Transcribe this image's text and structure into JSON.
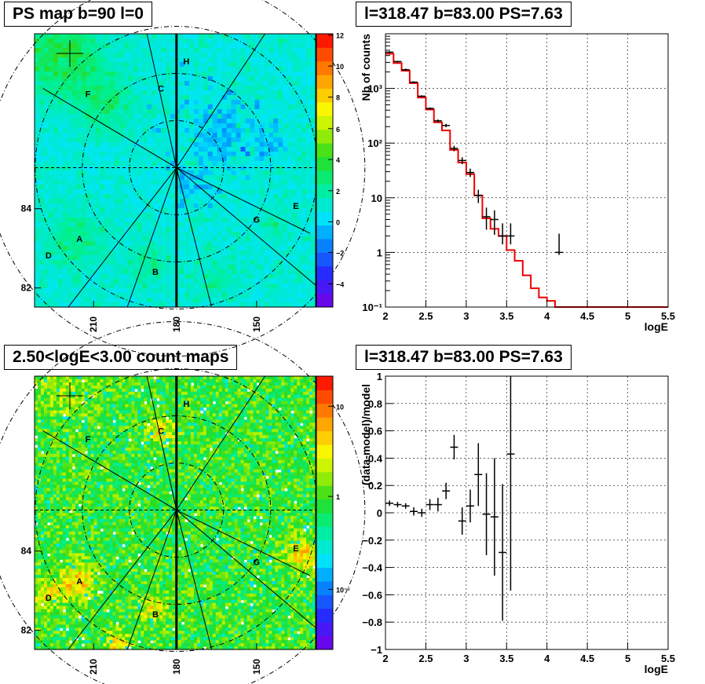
{
  "panels": {
    "top_left_title": "PS map b=90 l=0",
    "top_right_title": "l=318.47 b=83.00 PS=7.63",
    "bottom_left_title": "2.50<logE<3.00 count maps",
    "bottom_right_title": "l=318.47 b=83.00 PS=7.63"
  },
  "maps": {
    "x_ticks": [
      "210",
      "180",
      "150"
    ],
    "y_ticks": [
      "84",
      "82"
    ],
    "sector_labels": [
      "H",
      "C",
      "F",
      "E",
      "G",
      "A",
      "D",
      "B"
    ],
    "ps_colorbar_ticks": [
      "12",
      "10",
      "8",
      "6",
      "4",
      "2",
      "0",
      "−2",
      "−4"
    ],
    "count_colorbar_ticks": [
      "10",
      "1",
      "10⁻¹"
    ]
  },
  "chart_data": [
    {
      "type": "line",
      "title": "l=318.47 b=83.00 PS=7.63",
      "xlabel": "logE",
      "ylabel": "Nb of counts",
      "yscale": "log",
      "xlim": [
        2,
        5.5
      ],
      "ylim": [
        0.1,
        10000
      ],
      "grid": true,
      "x_tick_labels": [
        "2",
        "2.5",
        "3",
        "3.5",
        "4",
        "4.5",
        "5",
        "5.5"
      ],
      "y_tick_labels": [
        "10⁻¹",
        "1",
        "10",
        "10²",
        "10³"
      ],
      "data_points": {
        "x": [
          2.05,
          2.15,
          2.25,
          2.35,
          2.45,
          2.55,
          2.65,
          2.75,
          2.85,
          2.95,
          3.05,
          3.15,
          3.25,
          3.35,
          3.45,
          3.55,
          4.15
        ],
        "y": [
          4600,
          3100,
          2200,
          1300,
          720,
          430,
          255,
          210,
          80,
          48,
          29,
          11,
          4.5,
          4,
          2,
          2,
          1
        ],
        "err_lo": [
          4400,
          3000,
          2100,
          1250,
          690,
          410,
          240,
          195,
          71,
          41,
          24,
          8,
          2.6,
          2.1,
          1.4,
          1.4,
          0.9
        ],
        "err_hi": [
          4800,
          3200,
          2300,
          1350,
          750,
          450,
          270,
          225,
          89,
          55,
          34,
          14,
          6.6,
          5.9,
          3.4,
          3.4,
          2.2
        ]
      },
      "model": {
        "edges": [
          2.0,
          2.1,
          2.2,
          2.3,
          2.4,
          2.5,
          2.6,
          2.7,
          2.8,
          2.9,
          3.0,
          3.1,
          3.2,
          3.3,
          3.4,
          3.5,
          3.6,
          3.7,
          3.8,
          3.9,
          4.0,
          4.1,
          5.5
        ],
        "values": [
          4300,
          2900,
          2100,
          1250,
          680,
          410,
          240,
          170,
          75,
          44,
          27,
          11,
          4.2,
          2.7,
          2.0,
          1.1,
          0.7,
          0.38,
          0.22,
          0.15,
          0.13,
          0.1
        ]
      }
    },
    {
      "type": "scatter",
      "title": "l=318.47 b=83.00 PS=7.63",
      "xlabel": "logE",
      "ylabel": "(data-model)/model",
      "xlim": [
        2,
        5.5
      ],
      "ylim": [
        -1,
        1
      ],
      "grid": true,
      "x_tick_labels": [
        "2",
        "2.5",
        "3",
        "3.5",
        "4",
        "4.5",
        "5",
        "5.5"
      ],
      "y_tick_labels": [
        "1",
        "0.8",
        "0.6",
        "0.4",
        "0.2",
        "0",
        "−0.2",
        "−0.4",
        "−0.6",
        "−0.8",
        "−1"
      ],
      "x": [
        2.05,
        2.15,
        2.25,
        2.35,
        2.45,
        2.55,
        2.65,
        2.75,
        2.85,
        2.95,
        3.05,
        3.15,
        3.25,
        3.35,
        3.45,
        3.55
      ],
      "y": [
        0.07,
        0.06,
        0.05,
        0.01,
        0.0,
        0.06,
        0.06,
        0.16,
        0.48,
        -0.06,
        0.05,
        0.28,
        -0.01,
        -0.03,
        -0.29,
        0.43
      ],
      "yerr": [
        0.02,
        0.02,
        0.02,
        0.03,
        0.03,
        0.04,
        0.05,
        0.06,
        0.09,
        0.1,
        0.12,
        0.23,
        0.3,
        0.43,
        0.5,
        1.0
      ]
    }
  ]
}
